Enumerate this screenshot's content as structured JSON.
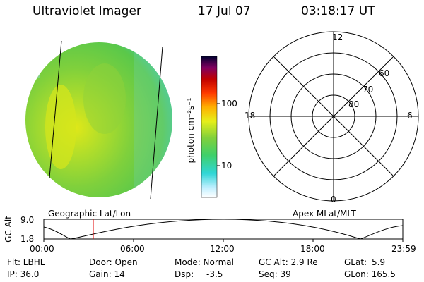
{
  "header": {
    "title": "Ultraviolet Imager",
    "date": "17 Jul 07",
    "time": "03:18:17 UT"
  },
  "colorbar": {
    "unit_label": "photon cm⁻²s⁻¹",
    "ticks": [
      "100",
      "10"
    ]
  },
  "polar_plot": {
    "mlt_labels": {
      "top": "12",
      "left": "18",
      "right": "6",
      "bottom": "0"
    },
    "lat_labels": [
      "60",
      "70",
      "80"
    ]
  },
  "map_labels": {
    "left": "Geographic Lat/Lon",
    "right": "Apex MLat/MLT"
  },
  "altitude_plot": {
    "ylabel": "GC Alt",
    "ymax_label": "9.0",
    "ymin_label": "1.8",
    "time_ticks": [
      "00:00",
      "06:00",
      "12:00",
      "18:00",
      "23:59"
    ],
    "marker_time_label": "03:18:17"
  },
  "info": {
    "row1": {
      "filter": "Flt: LBHL",
      "door": "Door: Open",
      "mode": "Mode: Normal",
      "gc_alt": "GC Alt: 2.9 Re",
      "glat_label": "GLat:",
      "glat_value": "5.9"
    },
    "row2": {
      "ip": "IP: 36.0",
      "gain": "Gain: 14",
      "dsp_label": "Dsp:",
      "dsp_value": "-3.5",
      "seq": "Seq: 39",
      "glon": "GLon: 165.5"
    }
  },
  "colors": {
    "marker": "#e00000",
    "image_base": "#7fd03c",
    "image_bright": "#d8e81a"
  }
}
